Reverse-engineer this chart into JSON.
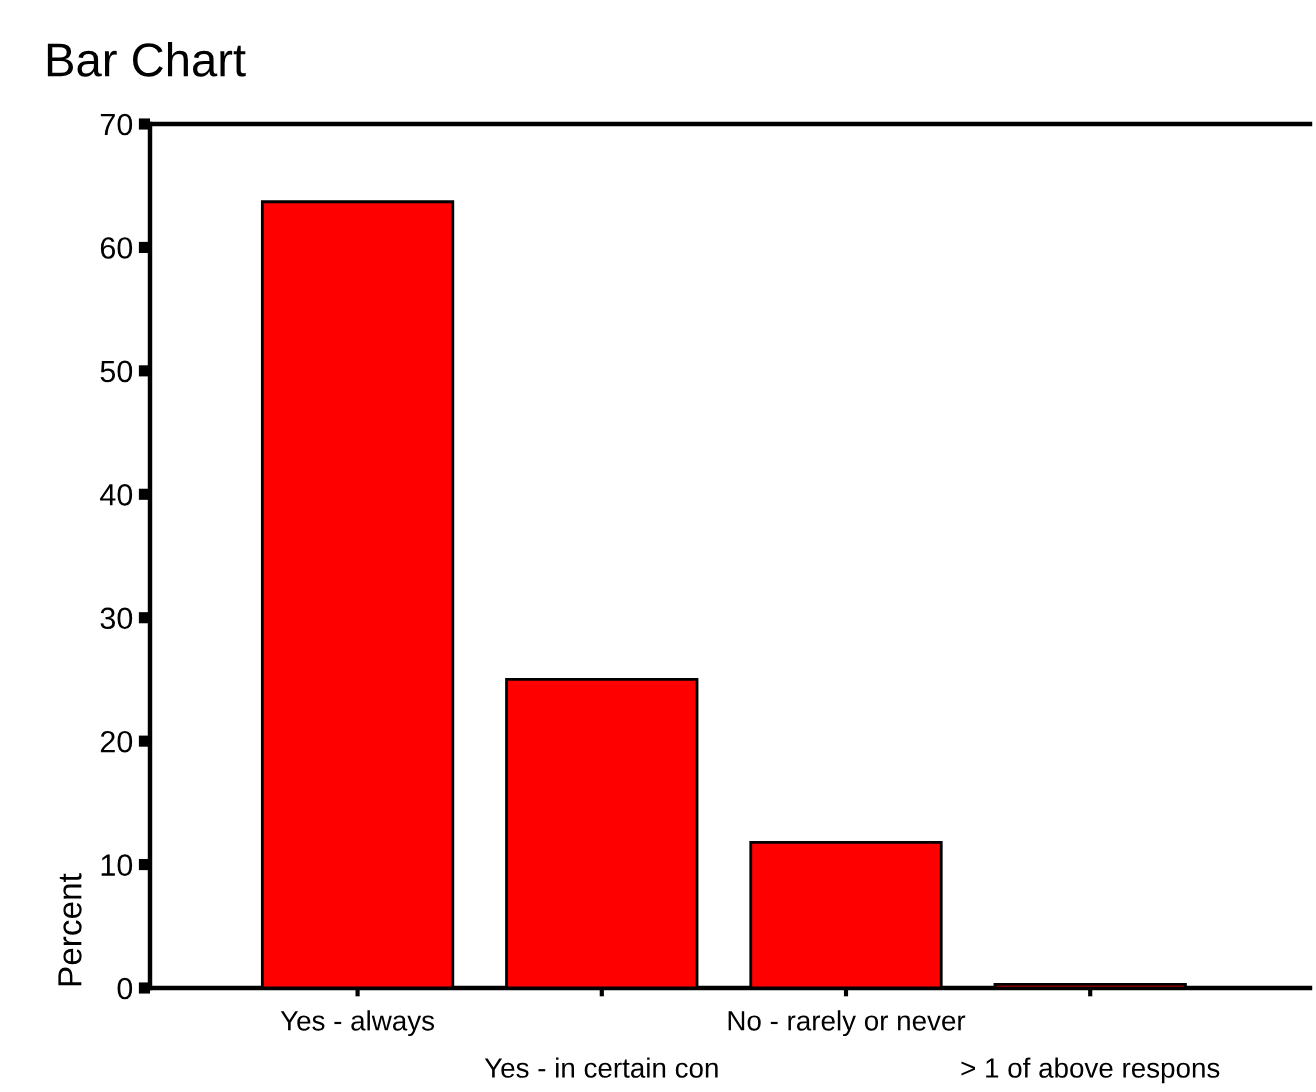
{
  "chart_data": {
    "type": "bar",
    "title": "Bar Chart",
    "ylabel": "Percent",
    "categories": [
      "Yes - always",
      "Yes - in certain con",
      "No - rarely or never",
      "> 1 of above respons"
    ],
    "values": [
      63.7,
      25.0,
      11.8,
      0.3
    ],
    "color": "#ff0000",
    "ylim": [
      0,
      70
    ],
    "yticks": [
      0,
      10,
      20,
      30,
      40,
      50,
      60,
      70
    ],
    "grid": false,
    "legend": false
  }
}
